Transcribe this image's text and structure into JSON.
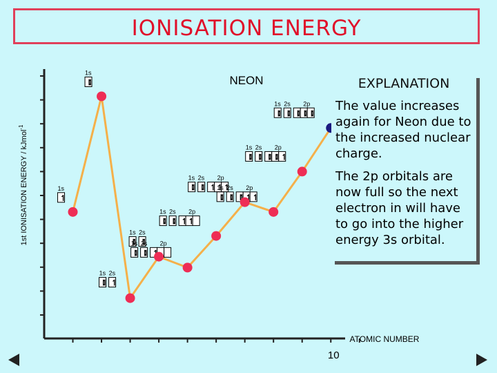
{
  "slide": {
    "title": "IONISATION ENERGY"
  },
  "explanation": {
    "heading": "EXPLANATION",
    "paragraph1": "The value increases again for Neon due to the increased nuclear charge.",
    "paragraph2": "The 2p orbitals are now full so the next electron in will have to go into the higher energy 3s orbital."
  },
  "chart_data": {
    "type": "line",
    "ylabel": "1st IONISATION ENERGY / kJmol",
    "ylabel_superscript": "-1",
    "xlabel": "ATOMIC NUMBER",
    "annotation": "NEON",
    "x_tick_labels": [
      {
        "x": 10,
        "label": "10"
      }
    ],
    "x": [
      1,
      2,
      3,
      4,
      5,
      6,
      7,
      8,
      9,
      10
    ],
    "y": [
      1310,
      2370,
      520,
      900,
      800,
      1090,
      1400,
      1310,
      1680,
      2080
    ],
    "highlight_index": 9,
    "xlim": [
      0,
      10.5
    ],
    "ylim": [
      150,
      2620
    ],
    "grid": false,
    "colors": {
      "line": "#f5b04a",
      "point": "#ee2d55",
      "highlight": "#1a1a80",
      "box_fill": "#ffffff"
    },
    "configurations": [
      {
        "x": 1,
        "orbital_labels": [
          "1s"
        ],
        "boxes": [
          1
        ]
      },
      {
        "x": 2,
        "orbital_labels": [
          "1s"
        ],
        "boxes": [
          2
        ]
      },
      {
        "x": 3,
        "orbital_labels": [
          "1s",
          "2s"
        ],
        "boxes": [
          2,
          1
        ]
      },
      {
        "x": 4,
        "orbital_labels": [
          "1s",
          "2s"
        ],
        "boxes": [
          2,
          2
        ]
      },
      {
        "x": 5,
        "orbital_labels": [
          "1s",
          "2s",
          "2p"
        ],
        "boxes": [
          2,
          2,
          1,
          0,
          0
        ]
      },
      {
        "x": 6,
        "orbital_labels": [
          "1s",
          "2s",
          "2p"
        ],
        "boxes": [
          2,
          2,
          1,
          1,
          0
        ]
      },
      {
        "x": 7,
        "orbital_labels": [
          "1s",
          "2s",
          "2p"
        ],
        "boxes": [
          2,
          2,
          1,
          1,
          1
        ]
      },
      {
        "x": 8,
        "orbital_labels": [
          "1s",
          "2s",
          "2p"
        ],
        "boxes": [
          2,
          2,
          2,
          1,
          1
        ]
      },
      {
        "x": 9,
        "orbital_labels": [
          "1s",
          "2s",
          "2p"
        ],
        "boxes": [
          2,
          2,
          2,
          2,
          1
        ]
      },
      {
        "x": 10,
        "orbital_labels": [
          "1s",
          "2s",
          "2p"
        ],
        "boxes": [
          2,
          2,
          2,
          2,
          2
        ]
      }
    ]
  }
}
